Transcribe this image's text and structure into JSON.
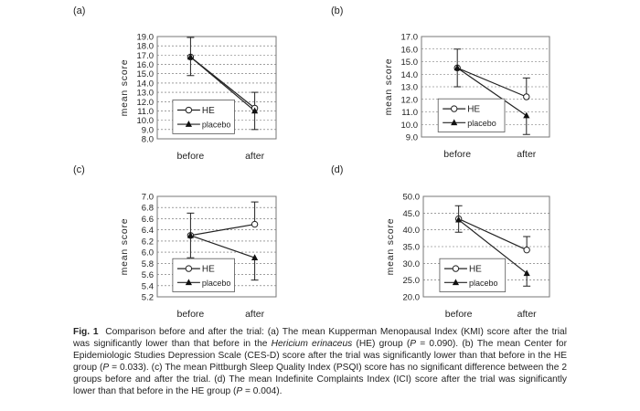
{
  "chart_data": [
    {
      "type": "line",
      "panel": "(a)",
      "ylabel": "mean score",
      "categories": [
        "before",
        "after"
      ],
      "ylim": [
        8,
        19
      ],
      "yticks": [
        "8.0",
        "9.0",
        "10.0",
        "11.0",
        "12.0",
        "13.0",
        "14.0",
        "15.0",
        "16.0",
        "17.0",
        "18.0",
        "19.0"
      ],
      "grid": true,
      "legend": "bottom-left",
      "series": [
        {
          "name": "HE",
          "marker": "open-circle",
          "values": [
            16.8,
            11.3
          ],
          "err_low": [
            null,
            null
          ],
          "err_high": [
            null,
            null
          ]
        },
        {
          "name": "placebo",
          "marker": "filled-triangle",
          "values": [
            16.8,
            11.0
          ],
          "err_low": [
            14.8,
            9.0
          ],
          "err_high": [
            18.9,
            13.0
          ]
        }
      ]
    },
    {
      "type": "line",
      "panel": "(b)",
      "ylabel": "mean score",
      "categories": [
        "before",
        "after"
      ],
      "ylim": [
        9,
        17
      ],
      "yticks": [
        "9.0",
        "10.0",
        "11.0",
        "12.0",
        "13.0",
        "14.0",
        "15.0",
        "16.0",
        "17.0"
      ],
      "grid": true,
      "legend": "bottom-left",
      "series": [
        {
          "name": "HE",
          "marker": "open-circle",
          "values": [
            14.5,
            12.2
          ],
          "err_low": [
            null,
            null
          ],
          "err_high": [
            null,
            13.7
          ]
        },
        {
          "name": "placebo",
          "marker": "filled-triangle",
          "values": [
            14.5,
            10.7
          ],
          "err_low": [
            13.0,
            9.2
          ],
          "err_high": [
            16.0,
            null
          ]
        }
      ]
    },
    {
      "type": "line",
      "panel": "(c)",
      "ylabel": "mean score",
      "categories": [
        "before",
        "after"
      ],
      "ylim": [
        5.2,
        7.0
      ],
      "yticks": [
        "5.2",
        "5.4",
        "5.6",
        "5.8",
        "6.0",
        "6.2",
        "6.4",
        "6.6",
        "6.8",
        "7.0"
      ],
      "grid": true,
      "legend": "bottom-left",
      "series": [
        {
          "name": "HE",
          "marker": "open-circle",
          "values": [
            6.3,
            6.5
          ],
          "err_low": [
            null,
            null
          ],
          "err_high": [
            null,
            6.9
          ]
        },
        {
          "name": "placebo",
          "marker": "filled-triangle",
          "values": [
            6.3,
            5.9
          ],
          "err_low": [
            5.9,
            5.5
          ],
          "err_high": [
            6.7,
            null
          ]
        }
      ]
    },
    {
      "type": "line",
      "panel": "(d)",
      "ylabel": "mean score",
      "categories": [
        "before",
        "after"
      ],
      "ylim": [
        20,
        50
      ],
      "yticks": [
        "20.0",
        "25.0",
        "30.0",
        "35.0",
        "40.0",
        "45.0",
        "50.0"
      ],
      "grid": true,
      "legend": "bottom-left",
      "series": [
        {
          "name": "HE",
          "marker": "open-circle",
          "values": [
            43.3,
            34.0
          ],
          "err_low": [
            null,
            null
          ],
          "err_high": [
            null,
            38.0
          ]
        },
        {
          "name": "placebo",
          "marker": "filled-triangle",
          "values": [
            43.0,
            27.0
          ],
          "err_low": [
            39.3,
            23.2
          ],
          "err_high": [
            47.2,
            null
          ]
        }
      ]
    }
  ],
  "caption": {
    "fig": "Fig. 1",
    "parts": [
      {
        "t": "Comparison before and after the trial: (a) The mean Kupperman Menopausal Index (KMI) score after the trial was significantly lower than that before in the ",
        "i": false
      },
      {
        "t": "Hericium erinaceus",
        "i": true
      },
      {
        "t": " (HE) group (",
        "i": false
      },
      {
        "t": "P",
        "i": true
      },
      {
        "t": " = 0.090). (b) The mean Center for Epidemiologic Studies Depression Scale (CES-D) score after the trial was significantly lower than that before in the HE group (",
        "i": false
      },
      {
        "t": "P",
        "i": true
      },
      {
        "t": " = 0.033). (c) The mean Pittburgh Sleep Quality Index (PSQI) score has no significant difference between the 2 groups before and after the trial. (d) The mean Indefinite Complaints Index (ICI) score after the trial was significantly lower than that before in the HE group (",
        "i": false
      },
      {
        "t": "P",
        "i": true
      },
      {
        "t": " = 0.004).",
        "i": false
      }
    ]
  }
}
